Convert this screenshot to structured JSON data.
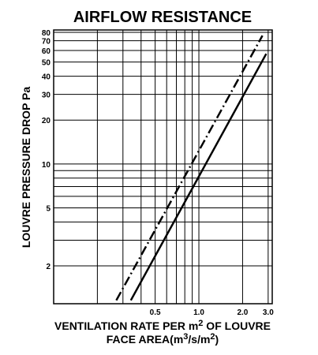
{
  "chart_data": {
    "type": "line",
    "title": "AIRFLOW RESISTANCE",
    "ylabel": "LOUVRE PRESSURE DROP Pa",
    "xlabel": [
      [
        "VENTILATION RATE PER m",
        "2",
        " OF LOUVRE"
      ],
      [
        "FACE AREA(m",
        "3",
        "/s/m",
        "2",
        ")"
      ]
    ],
    "xscale": "log",
    "yscale": "log",
    "xlim": [
      0.1,
      3.2
    ],
    "ylim": [
      1.1,
      83
    ],
    "xticks": [
      0.5,
      {
        "value": 1,
        "label": "1.0"
      },
      {
        "value": 2,
        "label": "2.0"
      },
      {
        "value": 3,
        "label": "3.0"
      }
    ],
    "xminor": [
      0.2,
      0.3,
      0.4,
      0.6,
      0.7,
      0.8,
      0.9
    ],
    "yticks": [
      2,
      5,
      10,
      20,
      30,
      40,
      50,
      60,
      70,
      80
    ],
    "yminor": [
      3,
      4,
      6,
      7,
      8,
      9
    ],
    "grid": true,
    "series": [
      {
        "color": "#000000",
        "dash": "solid",
        "x": [
          0.34,
          2.91
        ],
        "values": [
          1.16,
          57
        ]
      },
      {
        "color": "#000000",
        "dash": "dashdot",
        "x": [
          0.27,
          2.74
        ],
        "values": [
          1.16,
          76
        ]
      }
    ]
  }
}
